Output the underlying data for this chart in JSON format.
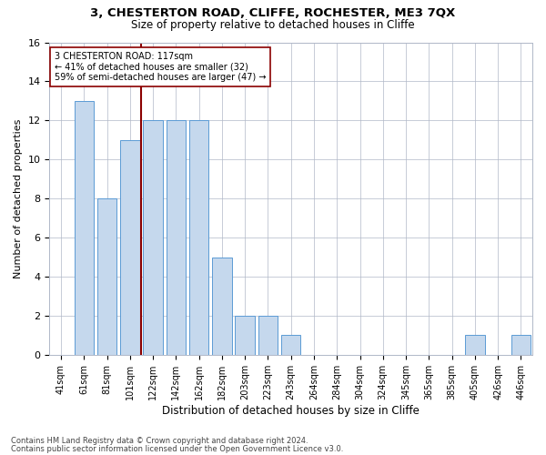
{
  "title1": "3, CHESTERTON ROAD, CLIFFE, ROCHESTER, ME3 7QX",
  "title2": "Size of property relative to detached houses in Cliffe",
  "xlabel": "Distribution of detached houses by size in Cliffe",
  "ylabel": "Number of detached properties",
  "annotation_line1": "3 CHESTERTON ROAD: 117sqm",
  "annotation_line2": "← 41% of detached houses are smaller (32)",
  "annotation_line3": "59% of semi-detached houses are larger (47) →",
  "footer1": "Contains HM Land Registry data © Crown copyright and database right 2024.",
  "footer2": "Contains public sector information licensed under the Open Government Licence v3.0.",
  "bar_color": "#c5d8ed",
  "bar_edge_color": "#5b9bd5",
  "vline_color": "#8b0000",
  "vline_x_index": 3,
  "categories": [
    "41sqm",
    "61sqm",
    "81sqm",
    "101sqm",
    "122sqm",
    "142sqm",
    "162sqm",
    "182sqm",
    "203sqm",
    "223sqm",
    "243sqm",
    "264sqm",
    "284sqm",
    "304sqm",
    "324sqm",
    "345sqm",
    "365sqm",
    "385sqm",
    "405sqm",
    "426sqm",
    "446sqm"
  ],
  "values": [
    0,
    13,
    8,
    11,
    12,
    12,
    12,
    5,
    2,
    2,
    1,
    0,
    0,
    0,
    0,
    0,
    0,
    0,
    1,
    0,
    1
  ],
  "ylim": [
    0,
    16
  ],
  "yticks": [
    0,
    2,
    4,
    6,
    8,
    10,
    12,
    14,
    16
  ],
  "annotation_box_color": "white",
  "annotation_box_edge": "#8b0000",
  "grid_color": "#b0b8c8",
  "background_color": "white",
  "title1_fontsize": 9.5,
  "title2_fontsize": 8.5,
  "ylabel_fontsize": 8,
  "xlabel_fontsize": 8.5,
  "tick_fontsize": 7,
  "annotation_fontsize": 7,
  "footer_fontsize": 6
}
